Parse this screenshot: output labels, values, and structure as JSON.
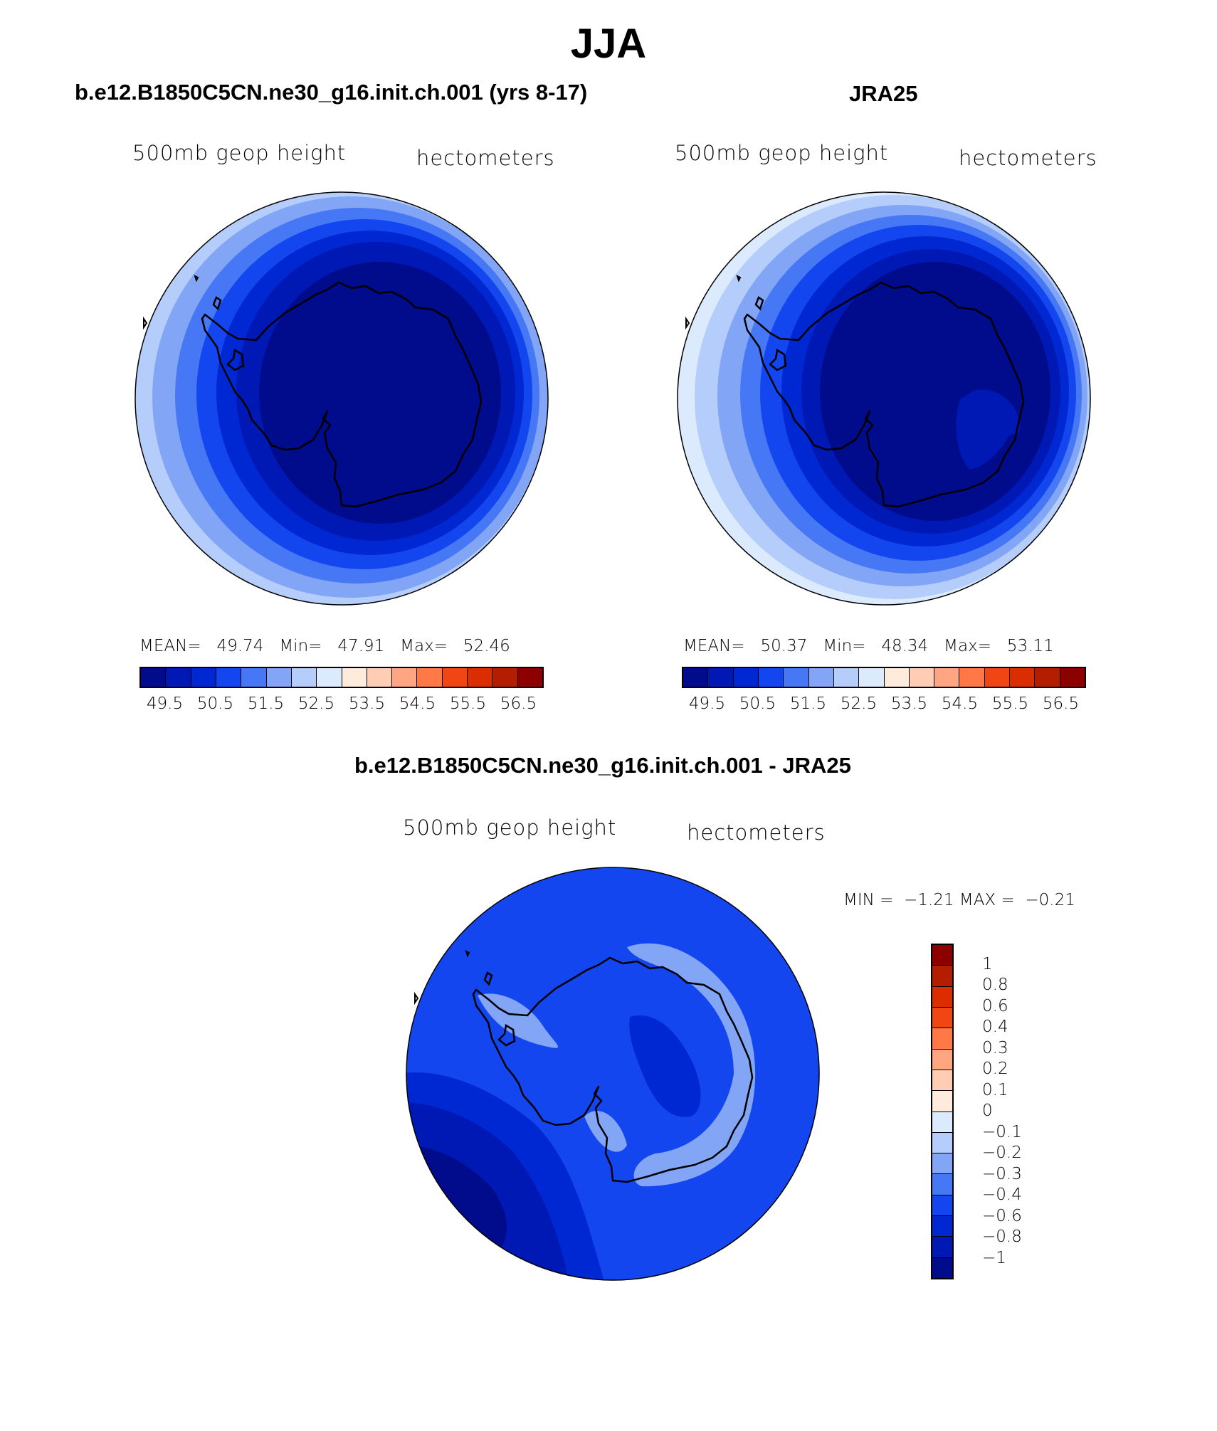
{
  "title": "JJA",
  "left_panel": {
    "title": "b.e12.B1850C5CN.ne30_g16.init.ch.001 (yrs 8-17)",
    "variable_label": "500mb geop height",
    "units_label": "hectometers",
    "stats": {
      "mean_label": "MEAN=",
      "mean": "49.74",
      "min_label": "Min=",
      "min": "47.91",
      "max_label": "Max=",
      "max": "52.46"
    }
  },
  "right_panel": {
    "title": "JRA25",
    "variable_label": "500mb geop height",
    "units_label": "hectometers",
    "stats": {
      "mean_label": "MEAN=",
      "mean": "50.37",
      "min_label": "Min=",
      "min": "48.34",
      "max_label": "Max=",
      "max": "53.11"
    }
  },
  "diff_panel": {
    "title": "b.e12.B1850C5CN.ne30_g16.init.ch.001 - JRA25",
    "variable_label": "500mb geop height",
    "units_label": "hectometers",
    "stats": {
      "min_label": "MIN =",
      "min": "−1.21",
      "max_label": "MAX =",
      "max": "−0.21"
    }
  },
  "colorbar_abs": {
    "colors": [
      "#000c8c",
      "#0019b4",
      "#0028d2",
      "#1446f0",
      "#4678f5",
      "#82a5f5",
      "#b4cdfa",
      "#dceafe",
      "#ffebdc",
      "#ffcdb4",
      "#ffa582",
      "#ff7846",
      "#f04614",
      "#dc2d00",
      "#b41e00",
      "#8c0000"
    ],
    "tick_labels": [
      "49.5",
      "50.5",
      "51.5",
      "52.5",
      "53.5",
      "54.5",
      "55.5",
      "56.5"
    ]
  },
  "colorbar_diff": {
    "colors_top_to_bottom": [
      "#8c0000",
      "#b41e00",
      "#dc2d00",
      "#f04614",
      "#ff7846",
      "#ffa582",
      "#ffcdb4",
      "#ffebdc",
      "#dceafe",
      "#b4cdfa",
      "#82a5f5",
      "#4678f5",
      "#1446f0",
      "#0028d2",
      "#0019b4",
      "#000c8c"
    ],
    "tick_labels_top_to_bottom": [
      "1",
      "0.8",
      "0.6",
      "0.4",
      "0.3",
      "0.2",
      "0.1",
      "0",
      "−0.1",
      "−0.2",
      "−0.3",
      "−0.4",
      "−0.6",
      "−0.8",
      "−1"
    ]
  },
  "map_fields": {
    "left_rings_outer_to_inner": [
      "#b4cdfa",
      "#82a5f5",
      "#4678f5",
      "#1446f0",
      "#0028d2",
      "#0019b4",
      "#000c8c"
    ],
    "right_rings_outer_to_inner": [
      "#dceafe",
      "#b4cdfa",
      "#82a5f5",
      "#4678f5",
      "#1446f0",
      "#0028d2",
      "#0019b4",
      "#000c8c"
    ],
    "diff_background": "#1446f0",
    "coastline_color": "#000000"
  }
}
